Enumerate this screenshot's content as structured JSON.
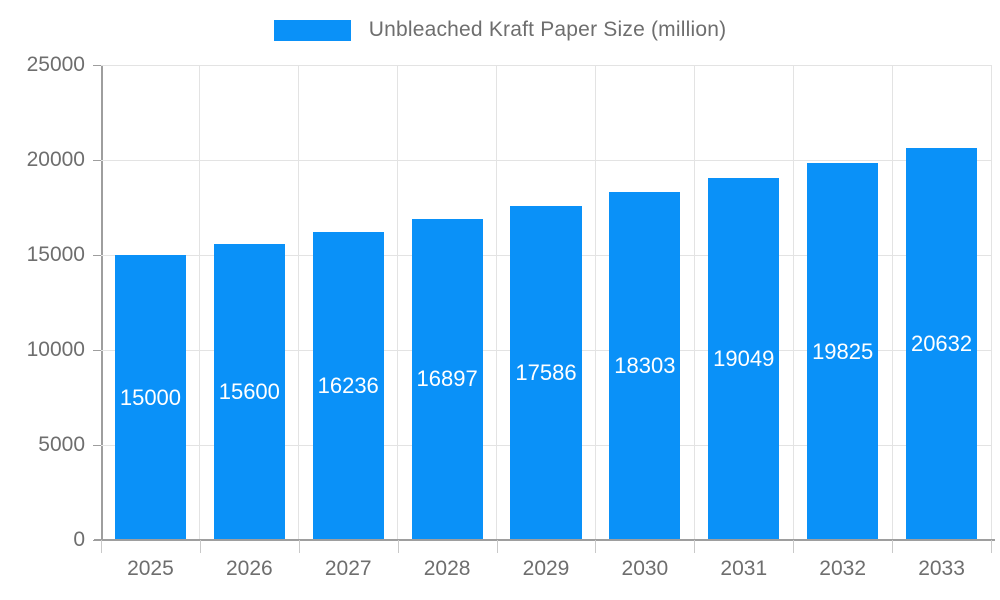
{
  "chart_data": {
    "type": "bar",
    "title": "",
    "legend": "Unbleached Kraft Paper Size (million)",
    "legend_position": "top",
    "categories": [
      "2025",
      "2026",
      "2027",
      "2028",
      "2029",
      "2030",
      "2031",
      "2032",
      "2033"
    ],
    "series": [
      {
        "name": "Unbleached Kraft Paper Size (million)",
        "values": [
          15000,
          15600,
          16236,
          16897,
          17586,
          18303,
          19049,
          19825,
          20632
        ]
      }
    ],
    "data_labels": [
      "15000",
      "15600",
      "16236",
      "16897",
      "17586",
      "18303",
      "19049",
      "19825",
      "20632"
    ],
    "xlabel": "",
    "ylabel": "",
    "ylim": [
      0,
      25000
    ],
    "yticks": [
      0,
      5000,
      10000,
      15000,
      20000,
      25000
    ],
    "ytick_labels": [
      "0",
      "5000",
      "10000",
      "15000",
      "20000",
      "25000"
    ],
    "grid": "on",
    "colors": {
      "bar": "#0a91f8",
      "bar_label_text": "#ffffff",
      "axis_text": "#6e6e6e",
      "axis_line": "#9e9e9e",
      "gridline": "#e3e3e3",
      "background": "#ffffff"
    }
  }
}
